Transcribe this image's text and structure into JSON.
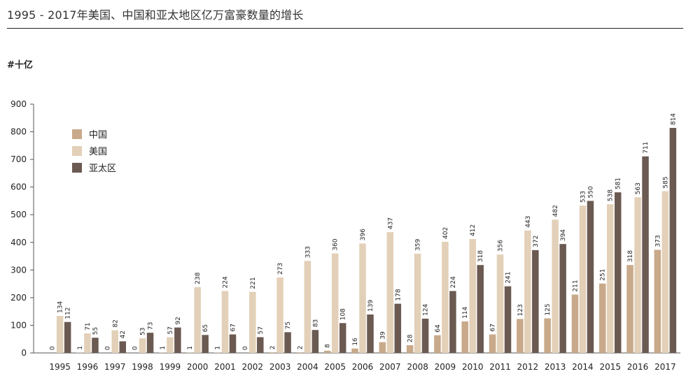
{
  "header": {
    "title": "1995 - 2017年美国、中国和亚太地区亿万富豪数量的增长",
    "unit": "#十亿"
  },
  "chart_data": {
    "type": "bar",
    "title": "1995 - 2017年美国、中国和亚太地区亿万富豪数量的增长",
    "ylabel": "#十亿",
    "xlabel": "",
    "ylim": [
      0,
      900
    ],
    "yticks": [
      "0",
      "100",
      "200",
      "300",
      "400",
      "500",
      "600",
      "700",
      "800",
      "900"
    ],
    "grid": false,
    "legend_position": "upper-left",
    "categories": [
      "1995",
      "1996",
      "1997",
      "1998",
      "1999",
      "2000",
      "2001",
      "2002",
      "2003",
      "2004",
      "2005",
      "2006",
      "2007",
      "2008",
      "2009",
      "2010",
      "2011",
      "2012",
      "2013",
      "2014",
      "2015",
      "2016",
      "2017"
    ],
    "series": [
      {
        "name": "中国",
        "color": "#c8a98a",
        "values": [
          0,
          1,
          0,
          0,
          1,
          1,
          1,
          0,
          2,
          2,
          8,
          16,
          39,
          28,
          64,
          114,
          67,
          123,
          125,
          211,
          251,
          318,
          373
        ]
      },
      {
        "name": "美国",
        "color": "#e3d0b8",
        "values": [
          134,
          71,
          82,
          53,
          57,
          238,
          224,
          221,
          273,
          333,
          360,
          396,
          437,
          359,
          402,
          412,
          356,
          443,
          482,
          533,
          538,
          563,
          585
        ]
      },
      {
        "name": "亚太区",
        "color": "#6b5a52",
        "values": [
          112,
          55,
          42,
          73,
          92,
          65,
          67,
          57,
          75,
          83,
          108,
          139,
          178,
          124,
          224,
          318,
          241,
          372,
          394,
          550,
          581,
          711,
          814
        ]
      }
    ]
  }
}
